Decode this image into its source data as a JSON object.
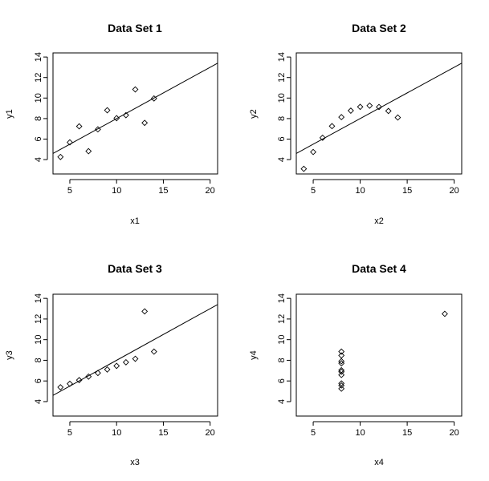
{
  "chart_data": [
    {
      "type": "scatter",
      "title": "Data Set 1",
      "xlabel": "x1",
      "ylabel": "y1",
      "xlim": [
        3.2,
        20.8
      ],
      "ylim": [
        2.6,
        14.4
      ],
      "xticks": [
        "5",
        "10",
        "15",
        "20"
      ],
      "yticks": [
        "4",
        "6",
        "8",
        "10",
        "12",
        "14"
      ],
      "x": [
        10,
        8,
        13,
        9,
        11,
        14,
        6,
        4,
        12,
        7,
        5
      ],
      "y": [
        8.04,
        6.95,
        7.58,
        8.81,
        8.33,
        9.96,
        7.24,
        4.26,
        10.84,
        4.82,
        5.68
      ],
      "regression_line": {
        "intercept": 3.0,
        "slope": 0.5
      }
    },
    {
      "type": "scatter",
      "title": "Data Set 2",
      "xlabel": "x2",
      "ylabel": "y2",
      "xlim": [
        3.2,
        20.8
      ],
      "ylim": [
        2.6,
        14.4
      ],
      "xticks": [
        "5",
        "10",
        "15",
        "20"
      ],
      "yticks": [
        "4",
        "6",
        "8",
        "10",
        "12",
        "14"
      ],
      "x": [
        10,
        8,
        13,
        9,
        11,
        14,
        6,
        4,
        12,
        7,
        5
      ],
      "y": [
        9.14,
        8.14,
        8.74,
        8.77,
        9.26,
        8.1,
        6.13,
        3.1,
        9.13,
        7.26,
        4.74
      ],
      "regression_line": {
        "intercept": 3.0,
        "slope": 0.5
      }
    },
    {
      "type": "scatter",
      "title": "Data Set 3",
      "xlabel": "x3",
      "ylabel": "y3",
      "xlim": [
        3.2,
        20.8
      ],
      "ylim": [
        2.6,
        14.4
      ],
      "xticks": [
        "5",
        "10",
        "15",
        "20"
      ],
      "yticks": [
        "4",
        "6",
        "8",
        "10",
        "12",
        "14"
      ],
      "x": [
        10,
        8,
        13,
        9,
        11,
        14,
        6,
        4,
        12,
        7,
        5
      ],
      "y": [
        7.46,
        6.77,
        12.74,
        7.11,
        7.81,
        8.84,
        6.08,
        5.39,
        8.15,
        6.42,
        5.73
      ],
      "regression_line": {
        "intercept": 3.0,
        "slope": 0.5
      }
    },
    {
      "type": "scatter",
      "title": "Data Set 4",
      "xlabel": "x4",
      "ylabel": "y4",
      "xlim": [
        3.2,
        20.8
      ],
      "ylim": [
        2.6,
        14.4
      ],
      "xticks": [
        "5",
        "10",
        "15",
        "20"
      ],
      "yticks": [
        "4",
        "6",
        "8",
        "10",
        "12",
        "14"
      ],
      "x": [
        8,
        8,
        8,
        8,
        8,
        8,
        8,
        19,
        8,
        8,
        8
      ],
      "y": [
        6.58,
        5.76,
        7.71,
        8.84,
        8.47,
        7.04,
        5.25,
        12.5,
        5.56,
        7.91,
        6.89
      ]
    }
  ]
}
